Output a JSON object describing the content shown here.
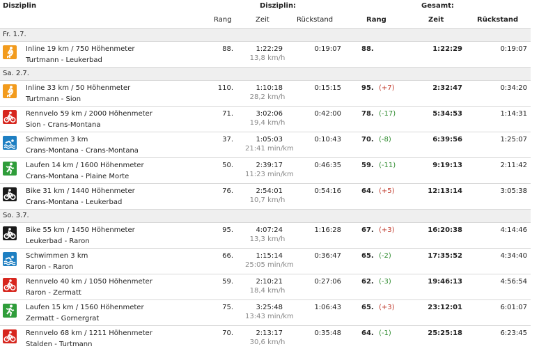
{
  "header": {
    "disziplin_left": "Disziplin",
    "disziplin_mid": "Disziplin:",
    "gesamt": "Gesamt:",
    "rang": "Rang",
    "zeit": "Zeit",
    "rueckstand": "Rückstand",
    "g_rang": "Rang",
    "g_zeit": "Zeit",
    "g_rueckstand": "Rückstand"
  },
  "colors": {
    "orange": "#f29b1d",
    "red": "#d7261e",
    "blue": "#1e7fc2",
    "green": "#2f9d3a",
    "black": "#1a1a1a"
  },
  "days": [
    {
      "label": "Fr. 1.7.",
      "events": [
        {
          "icon": "inline-skater-icon",
          "color": "orange",
          "name": "Inline 19 km / 750 Höhenmeter",
          "route": "Turtmann - Leukerbad",
          "rang": "88.",
          "zeit": "1:22:29",
          "speed": "13,8 km/h",
          "rueck": "0:19:07",
          "g_rang": "88.",
          "change": "",
          "g_zeit": "1:22:29",
          "g_rueck": "0:19:07"
        }
      ]
    },
    {
      "label": "Sa. 2.7.",
      "events": [
        {
          "icon": "inline-skater-icon",
          "color": "orange",
          "name": "Inline 33 km / 50 Höhenmeter",
          "route": "Turtmann - Sion",
          "rang": "110.",
          "zeit": "1:10:18",
          "speed": "28,2 km/h",
          "rueck": "0:15:15",
          "g_rang": "95.",
          "change": "(+7)",
          "g_zeit": "2:32:47",
          "g_rueck": "0:34:20"
        },
        {
          "icon": "road-bike-icon",
          "color": "red",
          "name": "Rennvelo 59 km / 2000 Höhenmeter",
          "route": "Sion - Crans-Montana",
          "rang": "71.",
          "zeit": "3:02:06",
          "speed": "19,4 km/h",
          "rueck": "0:42:00",
          "g_rang": "78.",
          "change": "(-17)",
          "g_zeit": "5:34:53",
          "g_rueck": "1:14:31"
        },
        {
          "icon": "swimming-icon",
          "color": "blue",
          "name": "Schwimmen 3 km",
          "route": "Crans-Montana - Crans-Montana",
          "rang": "37.",
          "zeit": "1:05:03",
          "speed": "21:41 min/km",
          "rueck": "0:10:43",
          "g_rang": "70.",
          "change": "(-8)",
          "g_zeit": "6:39:56",
          "g_rueck": "1:25:07"
        },
        {
          "icon": "running-icon",
          "color": "green",
          "name": "Laufen 14 km / 1600 Höhenmeter",
          "route": "Crans-Montana - Plaine Morte",
          "rang": "50.",
          "zeit": "2:39:17",
          "speed": "11:23 min/km",
          "rueck": "0:46:35",
          "g_rang": "59.",
          "change": "(-11)",
          "g_zeit": "9:19:13",
          "g_rueck": "2:11:42"
        },
        {
          "icon": "mountain-bike-icon",
          "color": "black",
          "name": "Bike 31 km / 1440 Höhenmeter",
          "route": "Crans-Montana - Leukerbad",
          "rang": "76.",
          "zeit": "2:54:01",
          "speed": "10,7 km/h",
          "rueck": "0:54:16",
          "g_rang": "64.",
          "change": "(+5)",
          "g_zeit": "12:13:14",
          "g_rueck": "3:05:38"
        }
      ]
    },
    {
      "label": "So. 3.7.",
      "events": [
        {
          "icon": "mountain-bike-icon",
          "color": "black",
          "name": "Bike 55 km / 1450 Höhenmeter",
          "route": "Leukerbad - Raron",
          "rang": "95.",
          "zeit": "4:07:24",
          "speed": "13,3 km/h",
          "rueck": "1:16:28",
          "g_rang": "67.",
          "change": "(+3)",
          "g_zeit": "16:20:38",
          "g_rueck": "4:14:46"
        },
        {
          "icon": "swimming-icon",
          "color": "blue",
          "name": "Schwimmen 3 km",
          "route": "Raron - Raron",
          "rang": "66.",
          "zeit": "1:15:14",
          "speed": "25:05 min/km",
          "rueck": "0:36:47",
          "g_rang": "65.",
          "change": "(-2)",
          "g_zeit": "17:35:52",
          "g_rueck": "4:34:40"
        },
        {
          "icon": "road-bike-icon",
          "color": "red",
          "name": "Rennvelo 40 km / 1050 Höhenmeter",
          "route": "Raron - Zermatt",
          "rang": "59.",
          "zeit": "2:10:21",
          "speed": "18,4 km/h",
          "rueck": "0:27:06",
          "g_rang": "62.",
          "change": "(-3)",
          "g_zeit": "19:46:13",
          "g_rueck": "4:56:54"
        },
        {
          "icon": "running-icon",
          "color": "green",
          "name": "Laufen 15 km / 1560 Höhenmeter",
          "route": "Zermatt - Gornergrat",
          "rang": "75.",
          "zeit": "3:25:48",
          "speed": "13:43 min/km",
          "rueck": "1:06:43",
          "g_rang": "65.",
          "change": "(+3)",
          "g_zeit": "23:12:01",
          "g_rueck": "6:01:07"
        },
        {
          "icon": "road-bike-icon",
          "color": "red",
          "name": "Rennvelo 68 km / 1211 Höhenmeter",
          "route": "Stalden - Turtmann",
          "rang": "70.",
          "zeit": "2:13:17",
          "speed": "30,6 km/h",
          "rueck": "0:35:48",
          "g_rang": "64.",
          "change": "(-1)",
          "g_zeit": "25:25:18",
          "g_rueck": "6:23:45"
        }
      ]
    }
  ]
}
